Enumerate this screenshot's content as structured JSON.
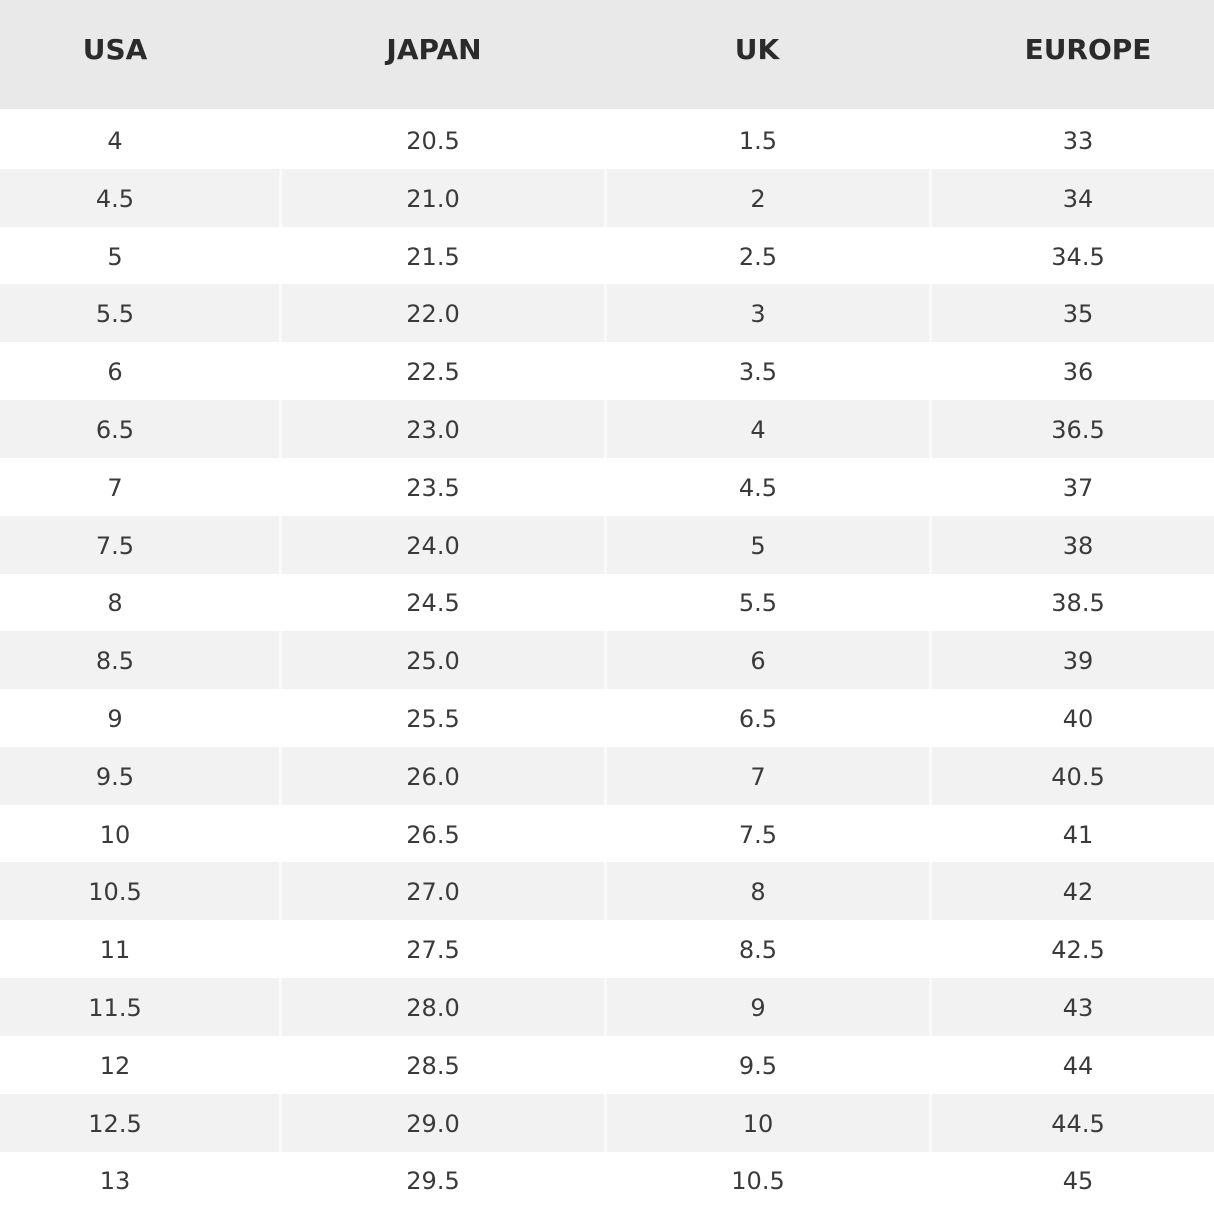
{
  "table": {
    "header": [
      "USA",
      "JAPAN",
      "UK",
      "EUROPE"
    ],
    "rows": [
      [
        "4",
        "20.5",
        "1.5",
        "33"
      ],
      [
        "4.5",
        "21.0",
        "2",
        "34"
      ],
      [
        "5",
        "21.5",
        "2.5",
        "34.5"
      ],
      [
        "5.5",
        "22.0",
        "3",
        "35"
      ],
      [
        "6",
        "22.5",
        "3.5",
        "36"
      ],
      [
        "6.5",
        "23.0",
        "4",
        "36.5"
      ],
      [
        "7",
        "23.5",
        "4.5",
        "37"
      ],
      [
        "7.5",
        "24.0",
        "5",
        "38"
      ],
      [
        "8",
        "24.5",
        "5.5",
        "38.5"
      ],
      [
        "8.5",
        "25.0",
        "6",
        "39"
      ],
      [
        "9",
        "25.5",
        "6.5",
        "40"
      ],
      [
        "9.5",
        "26.0",
        "7",
        "40.5"
      ],
      [
        "10",
        "26.5",
        "7.5",
        "41"
      ],
      [
        "10.5",
        "27.0",
        "8",
        "42"
      ],
      [
        "11",
        "27.5",
        "8.5",
        "42.5"
      ],
      [
        "11.5",
        "28.0",
        "9",
        "43"
      ],
      [
        "12",
        "28.5",
        "9.5",
        "44"
      ],
      [
        "12.5",
        "29.0",
        "10",
        "44.5"
      ],
      [
        "13",
        "29.5",
        "10.5",
        "45"
      ]
    ]
  }
}
